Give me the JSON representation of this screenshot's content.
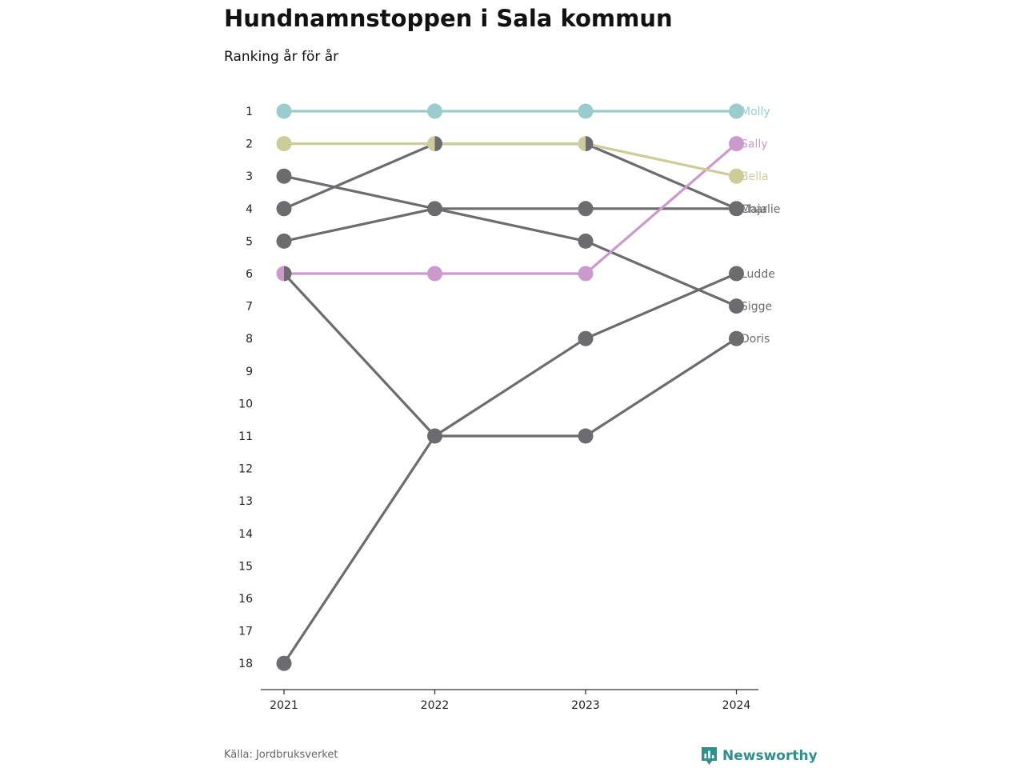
{
  "title": "Hundnamnstoppen i Sala kommun",
  "subtitle": "Ranking år för år",
  "source": "Källa: Jordbruksverket",
  "brand": "Newsworthy",
  "colors": {
    "molly": "#9acccc",
    "bella": "#cccc99",
    "sally": "#cc99cc",
    "other": "#6c6b70",
    "axis": "#333333",
    "brand": "#2f8f8b"
  },
  "chart_data": {
    "type": "line",
    "x": [
      "2021",
      "2022",
      "2023",
      "2024"
    ],
    "y_ticks": [
      "1",
      "2",
      "3",
      "4",
      "5",
      "6",
      "7",
      "8",
      "9",
      "10",
      "11",
      "12",
      "13",
      "14",
      "15",
      "16",
      "17",
      "18"
    ],
    "ylim": [
      1,
      18
    ],
    "y_reversed": true,
    "grid": false,
    "series": [
      {
        "name": "Molly",
        "color": "#9acccc",
        "values": [
          1,
          1,
          1,
          1
        ]
      },
      {
        "name": "Sally",
        "color": "#cc99cc",
        "values": [
          6,
          6,
          6,
          2
        ]
      },
      {
        "name": "Bella",
        "color": "#cccc99",
        "values": [
          2,
          2,
          2,
          3
        ]
      },
      {
        "name": "Maja",
        "color": "#6c6b70",
        "values": [
          4,
          2,
          2,
          4
        ]
      },
      {
        "name": "Charlie",
        "color": "#6c6b70",
        "values": [
          5,
          4,
          4,
          4
        ]
      },
      {
        "name": "Ludde",
        "color": "#6c6b70",
        "values": [
          18,
          11,
          8,
          6
        ]
      },
      {
        "name": "Sigge",
        "color": "#6c6b70",
        "values": [
          3,
          4,
          5,
          7
        ]
      },
      {
        "name": "Doris",
        "color": "#6c6b70",
        "values": [
          6,
          11,
          11,
          8
        ]
      }
    ]
  }
}
